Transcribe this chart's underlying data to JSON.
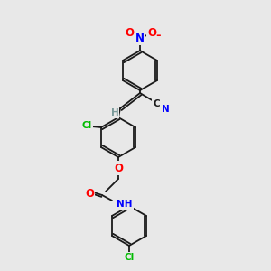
{
  "bg_color": "#e8e8e8",
  "bond_color": "#1a1a1a",
  "atom_colors": {
    "O": "#ff0000",
    "N": "#0000ff",
    "Cl": "#00bb00",
    "C": "#1a1a1a",
    "H": "#7a9a9a"
  },
  "font_size": 7.5,
  "line_width": 1.3
}
